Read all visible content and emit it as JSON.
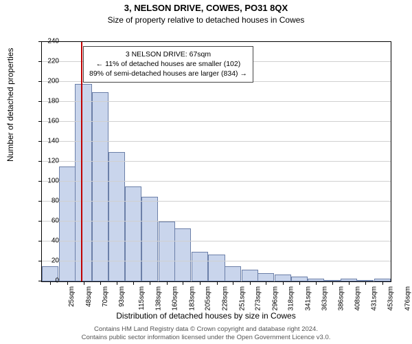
{
  "title": "3, NELSON DRIVE, COWES, PO31 8QX",
  "subtitle": "Size of property relative to detached houses in Cowes",
  "ylabel": "Number of detached properties",
  "xlabel": "Distribution of detached houses by size in Cowes",
  "chart": {
    "type": "histogram",
    "background_color": "#ffffff",
    "grid_color": "#d0d0d0",
    "axis_color": "#000000",
    "bar_fill": "#c9d5ec",
    "bar_border": "#6b7fa8",
    "refline_color": "#c00000",
    "refline_x": 67,
    "xlim": [
      13.5,
      487.5
    ],
    "ylim": [
      0,
      240
    ],
    "ytick_step": 20,
    "bin_width": 22.5,
    "label_fontsize": 10,
    "axis_label_fontsize": 12,
    "title_fontsize": 13,
    "bins": [
      {
        "label": "25sqm",
        "x": 25,
        "count": 15
      },
      {
        "label": "48sqm",
        "x": 48,
        "count": 115
      },
      {
        "label": "70sqm",
        "x": 70,
        "count": 198
      },
      {
        "label": "93sqm",
        "x": 93,
        "count": 190
      },
      {
        "label": "115sqm",
        "x": 115,
        "count": 130
      },
      {
        "label": "138sqm",
        "x": 138,
        "count": 95
      },
      {
        "label": "160sqm",
        "x": 160,
        "count": 85
      },
      {
        "label": "183sqm",
        "x": 183,
        "count": 60
      },
      {
        "label": "205sqm",
        "x": 205,
        "count": 53
      },
      {
        "label": "228sqm",
        "x": 228,
        "count": 30
      },
      {
        "label": "251sqm",
        "x": 251,
        "count": 27
      },
      {
        "label": "273sqm",
        "x": 273,
        "count": 15
      },
      {
        "label": "296sqm",
        "x": 296,
        "count": 12
      },
      {
        "label": "318sqm",
        "x": 318,
        "count": 8
      },
      {
        "label": "341sqm",
        "x": 341,
        "count": 7
      },
      {
        "label": "363sqm",
        "x": 363,
        "count": 5
      },
      {
        "label": "386sqm",
        "x": 386,
        "count": 3
      },
      {
        "label": "408sqm",
        "x": 408,
        "count": 0
      },
      {
        "label": "431sqm",
        "x": 431,
        "count": 3
      },
      {
        "label": "453sqm",
        "x": 453,
        "count": 0
      },
      {
        "label": "476sqm",
        "x": 476,
        "count": 3
      }
    ]
  },
  "annotation": {
    "line1": "3 NELSON DRIVE: 67sqm",
    "line2": "← 11% of detached houses are smaller (102)",
    "line3": "89% of semi-detached houses are larger (834) →"
  },
  "footer": {
    "line1": "Contains HM Land Registry data © Crown copyright and database right 2024.",
    "line2": "Contains public sector information licensed under the Open Government Licence v3.0."
  }
}
